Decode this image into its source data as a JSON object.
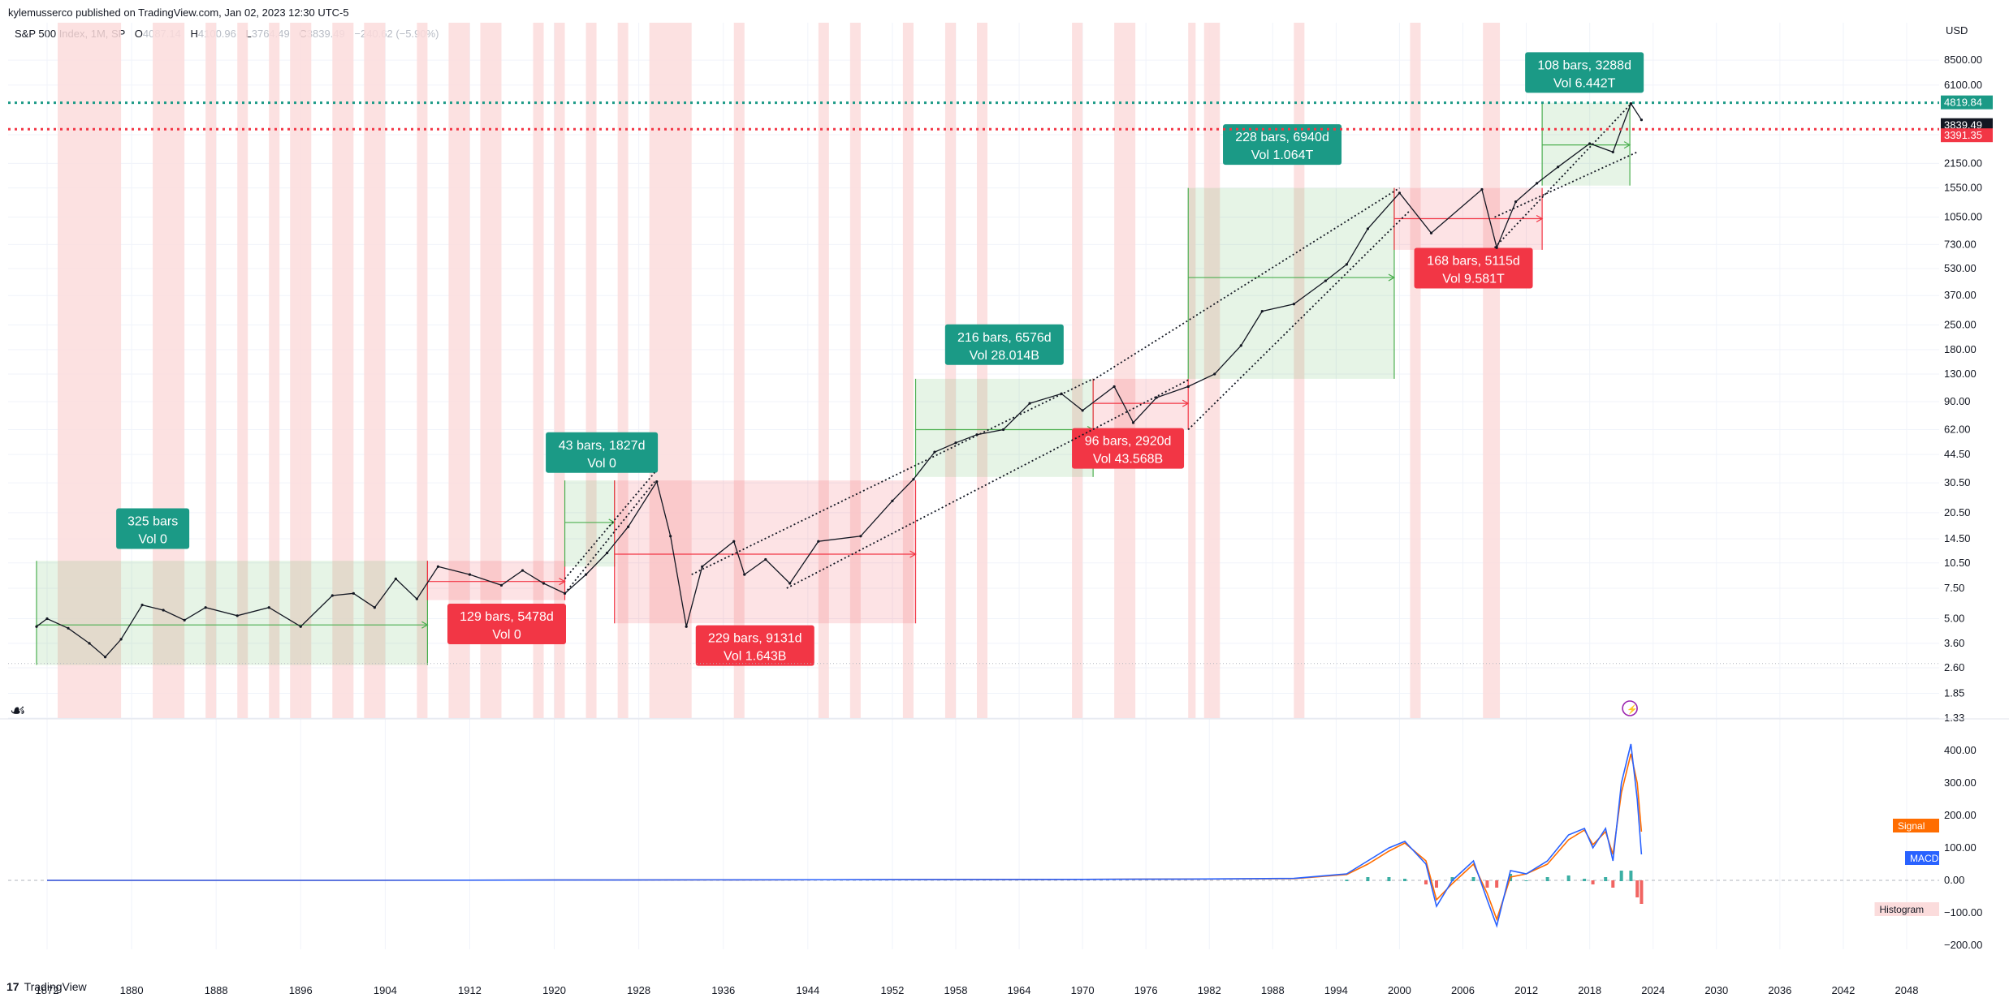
{
  "header": {
    "publish_line": "kylemusserco published on TradingView.com, Jan 02, 2023 12:30 UTC-5"
  },
  "legend": {
    "symbol": "S&P 500 Index, 1M, SP",
    "open_label": "O",
    "open": "4087.14",
    "high_label": "H",
    "high": "4100.96",
    "low_label": "L",
    "low": "3764.49",
    "close_label": "C",
    "close": "3839.49",
    "change": "−240.62 (−5.90%)"
  },
  "footer": {
    "logo_mark": "17",
    "brand": "TradingView"
  },
  "colors": {
    "green_box": "#4caf50",
    "red_box": "#f23645",
    "teal": "#1b9a86",
    "red_label": "#f23645",
    "recession_shade": "#fbdcdc",
    "macd_line": "#2962ff",
    "signal_line": "#ff6d00"
  },
  "chart_data": [
    {
      "type": "line",
      "title": "S&P 500 Index, 1M, SP",
      "y_scale": "log",
      "y_unit": "USD",
      "ylim": [
        1.33,
        14000
      ],
      "xlim": [
        1870,
        2052
      ],
      "x_ticks": [
        "1872",
        "1880",
        "1888",
        "1896",
        "1904",
        "1912",
        "1920",
        "1928",
        "1936",
        "1944",
        "1952",
        "1958",
        "1964",
        "1970",
        "1976",
        "1982",
        "1988",
        "1994",
        "2000",
        "2006",
        "2012",
        "2018",
        "2024",
        "2030",
        "2036",
        "2042",
        "2048"
      ],
      "y_ticks": [
        "8500.00",
        "6100.00",
        "3150.00",
        "2150.00",
        "1550.00",
        "1050.00",
        "730.00",
        "530.00",
        "370.00",
        "250.00",
        "180.00",
        "130.00",
        "90.00",
        "62.00",
        "44.50",
        "30.50",
        "20.50",
        "14.50",
        "10.50",
        "7.50",
        "5.00",
        "3.60",
        "2.60",
        "1.85",
        "1.33"
      ],
      "grid": true,
      "price_levels": [
        {
          "value": 4819.84,
          "label": "4819.84",
          "color": "#1b9a86"
        },
        {
          "value": 3839.49,
          "label": "3839.49",
          "color": "#131722"
        },
        {
          "value": 3391.35,
          "label": "3391.35",
          "color": "#f23645"
        }
      ],
      "series": [
        {
          "values_x": [
            1871.0,
            1872.0,
            1874.0,
            1876.0,
            1877.5,
            1879.0,
            1881.0,
            1883.0,
            1885.0,
            1887.0,
            1890.0,
            1893.0,
            1896.0,
            1899.0,
            1901.0,
            1903.0,
            1905.0,
            1907.0,
            1909.0,
            1912.0,
            1915.0,
            1917.0,
            1919.0,
            1921.0,
            1923.0,
            1925.0,
            1927.0,
            1929.7,
            1931.0,
            1932.5,
            1934.0,
            1937.0,
            1938.0,
            1940.0,
            1942.3,
            1945.0,
            1949.0,
            1952.0,
            1954.0,
            1956.0,
            1958.0,
            1960.0,
            1962.5,
            1965.0,
            1968.0,
            1970.0,
            1973.0,
            1974.8,
            1977.0,
            1980.0,
            1982.5,
            1985.0,
            1987.0,
            1990.0,
            1993.0,
            1995.0,
            1997.0,
            2000.0,
            2003.0,
            2007.8,
            2009.2,
            2011.0,
            2013.0,
            2015.0,
            2018.0,
            2020.2,
            2021.9,
            2022.9
          ],
          "values_y": [
            4.5,
            5.0,
            4.4,
            3.6,
            3.0,
            3.8,
            6.0,
            5.6,
            4.9,
            5.8,
            5.2,
            5.8,
            4.5,
            6.8,
            7.0,
            5.8,
            8.5,
            6.5,
            10.0,
            9.0,
            7.8,
            9.5,
            8.0,
            7.0,
            9.0,
            12.0,
            17.0,
            31.0,
            15.0,
            4.5,
            10.0,
            14.0,
            9.0,
            11.0,
            8.0,
            14.0,
            15.0,
            24.0,
            32.0,
            46.0,
            52.0,
            58.0,
            62.0,
            88.0,
            100.0,
            80.0,
            110.0,
            68.0,
            95.0,
            110.0,
            130.0,
            190.0,
            300.0,
            330.0,
            450.0,
            560.0,
            900.0,
            1450.0,
            850.0,
            1520.0,
            700.0,
            1290.0,
            1650.0,
            2050.0,
            2800.0,
            2500.0,
            4770.0,
            3839.49
          ]
        }
      ],
      "annotations": [
        {
          "kind": "green",
          "label1": "325 bars",
          "label2": "Vol 0"
        },
        {
          "kind": "red",
          "label1": "129 bars, 5478d",
          "label2": "Vol 0"
        },
        {
          "kind": "green",
          "label1": "43 bars, 1827d",
          "label2": "Vol 0"
        },
        {
          "kind": "red",
          "label1": "229 bars, 9131d",
          "label2": "Vol 1.643B"
        },
        {
          "kind": "green",
          "label1": "216 bars, 6576d",
          "label2": "Vol 28.014B"
        },
        {
          "kind": "red",
          "label1": "96 bars, 2920d",
          "label2": "Vol 43.568B"
        },
        {
          "kind": "green",
          "label1": "228 bars, 6940d",
          "label2": "Vol 1.064T"
        },
        {
          "kind": "red",
          "label1": "168 bars, 5115d",
          "label2": "Vol 9.581T"
        },
        {
          "kind": "green",
          "label1": "108 bars, 3288d",
          "label2": "Vol 6.442T"
        }
      ]
    },
    {
      "type": "line",
      "title": "MACD",
      "ylim": [
        -200,
        450
      ],
      "y_ticks": [
        "400.00",
        "300.00",
        "200.00",
        "100.00",
        "0.00",
        "−100.00",
        "−200.00"
      ],
      "legend": [
        "Signal",
        "MACD",
        "Histogram"
      ],
      "series": [
        {
          "name": "MACD",
          "x": [
            1872,
            1900,
            1920,
            1950,
            1970,
            1980,
            1990,
            1995,
            1997,
            1999,
            2000.5,
            2002.5,
            2003.5,
            2005,
            2007,
            2008.3,
            2009.2,
            2010.5,
            2012,
            2014,
            2016,
            2017.5,
            2018.3,
            2019.5,
            2020.2,
            2021,
            2021.9,
            2022.5,
            2022.9
          ],
          "values": [
            0,
            0,
            1,
            2,
            3,
            4,
            6,
            20,
            60,
            100,
            120,
            50,
            -80,
            0,
            60,
            -60,
            -140,
            30,
            20,
            60,
            140,
            160,
            100,
            160,
            60,
            300,
            420,
            250,
            80
          ]
        },
        {
          "name": "Signal",
          "x": [
            1872,
            1900,
            1920,
            1950,
            1970,
            1980,
            1990,
            1995,
            1997,
            1999,
            2000.5,
            2002.5,
            2003.5,
            2005,
            2007,
            2008.3,
            2009.2,
            2010.5,
            2012,
            2014,
            2016,
            2017.5,
            2018.3,
            2019.5,
            2020.2,
            2021,
            2021.9,
            2022.5,
            2022.9
          ],
          "values": [
            0,
            0,
            1,
            2,
            3,
            4,
            5,
            18,
            50,
            90,
            115,
            60,
            -60,
            -10,
            50,
            -40,
            -120,
            10,
            20,
            50,
            125,
            155,
            110,
            150,
            80,
            270,
            390,
            300,
            150
          ]
        }
      ]
    }
  ]
}
